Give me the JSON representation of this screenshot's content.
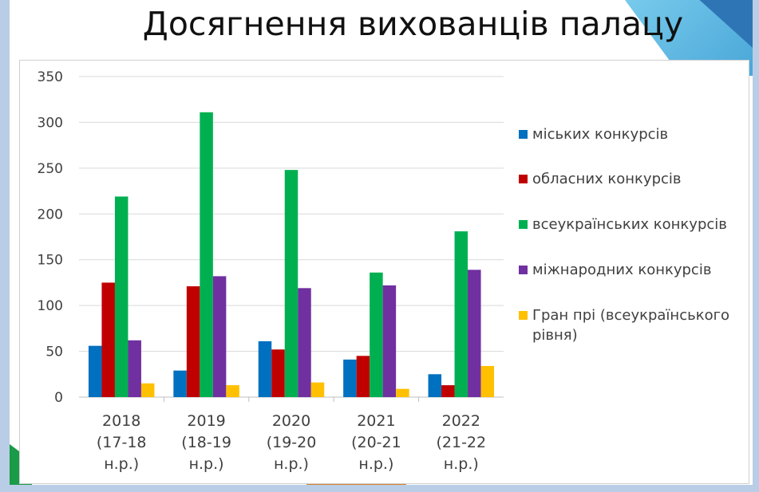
{
  "title": "Досягнення вихованців палацу",
  "chart_data": {
    "type": "bar",
    "categories": [
      [
        "2018",
        "(17-18",
        "н.р.)"
      ],
      [
        "2019",
        "(18-19",
        "н.р.)"
      ],
      [
        "2020",
        "(19-20",
        "н.р.)"
      ],
      [
        "2021",
        "(20-21",
        "н.р.)"
      ],
      [
        "2022",
        "(21-22",
        "н.р.)"
      ]
    ],
    "series": [
      {
        "name": "міських конкурсів",
        "color": "#0070c0",
        "values": [
          56,
          29,
          61,
          41,
          25
        ]
      },
      {
        "name": "обласних конкурсів",
        "color": "#c00000",
        "values": [
          125,
          121,
          52,
          45,
          13
        ]
      },
      {
        "name": "всеукраїнських конкурсів",
        "color": "#00b050",
        "values": [
          219,
          311,
          248,
          136,
          181
        ]
      },
      {
        "name": "міжнародних конкурсів",
        "color": "#7030a0",
        "values": [
          62,
          132,
          119,
          122,
          139
        ]
      },
      {
        "name": "Гран прі (всеукраїнського рівня)",
        "color": "#ffc000",
        "values": [
          15,
          13,
          16,
          9,
          34
        ]
      }
    ],
    "legend_lines": [
      [
        "міських конкурсів"
      ],
      [
        "обласних конкурсів"
      ],
      [
        "всеукраїнських конкурсів"
      ],
      [
        "міжнародних конкурсів"
      ],
      [
        "Гран прі (всеукраїнського",
        "рівня)"
      ]
    ],
    "ylim": [
      0,
      350
    ],
    "yticks": [
      "0",
      "50",
      "100",
      "150",
      "200",
      "250",
      "300",
      "350"
    ],
    "grid": true,
    "legend_position": "right"
  }
}
